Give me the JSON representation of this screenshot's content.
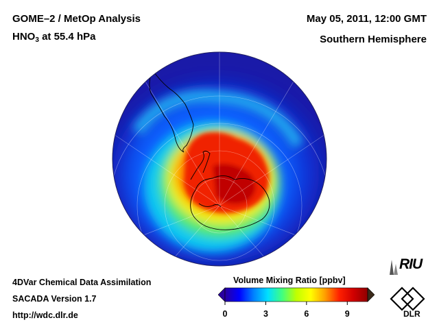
{
  "header": {
    "title_line1": "GOME–2 / MetOp Analysis",
    "species_main": "HNO",
    "species_sub": "3",
    "species_rest": " at 55.4 hPa",
    "datetime": "May 05, 2011, 12:00 GMT",
    "hemisphere": "Southern Hemisphere"
  },
  "footer": {
    "line1": "4DVar Chemical Data Assimilation",
    "line2": "SACADA Version 1.7",
    "line3": "http://wdc.dlr.de"
  },
  "colorbar": {
    "title": "Volume Mixing Ratio [ppbv]",
    "ticks": [
      "0",
      "3",
      "6",
      "9"
    ],
    "tick_values": [
      0,
      3,
      6,
      9
    ],
    "range": [
      0,
      10.5
    ],
    "colors": [
      "#2a00a0",
      "#0000ff",
      "#0080ff",
      "#00e0ff",
      "#40ff80",
      "#c0ff00",
      "#ffff00",
      "#ffa000",
      "#ff2000",
      "#d00000",
      "#900000"
    ],
    "overflow_color": "#3a2a1a"
  },
  "map": {
    "projection": "orthographic",
    "center": "South Pole",
    "background_color": "#1a1aa8",
    "vortex_peak_ppbv": 10
  },
  "logos": {
    "riu_text": "RIU",
    "dlr_text": "DLR"
  }
}
